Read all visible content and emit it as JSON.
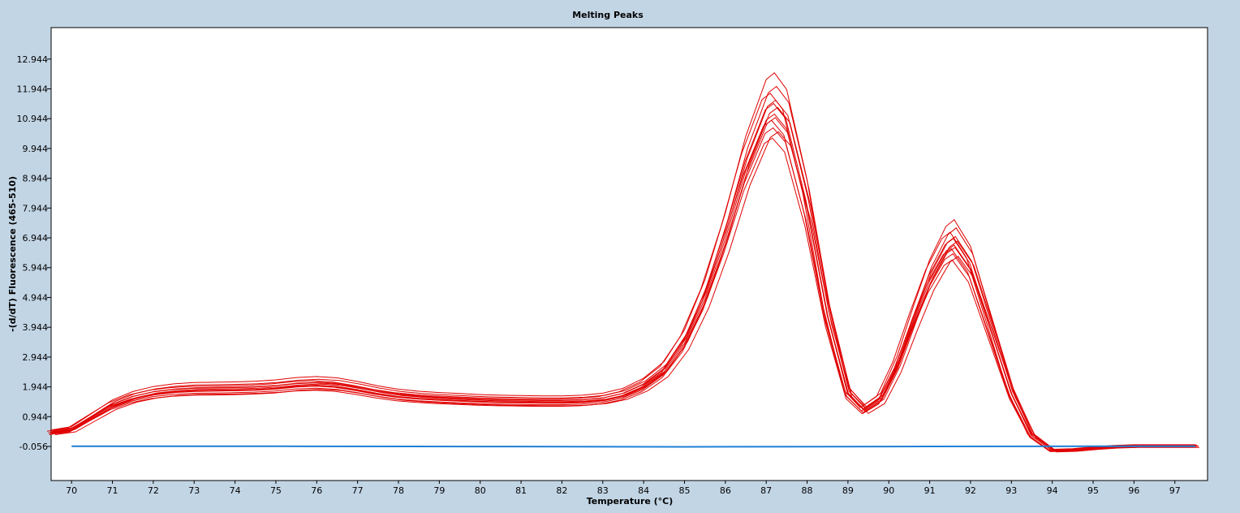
{
  "chart_data": {
    "type": "line",
    "title": "Melting Peaks",
    "xlabel": "Temperature (°C)",
    "ylabel": "-(d/dT) Fluorescence (465-510)",
    "xlim": [
      69.5,
      97.8
    ],
    "ylim": [
      -1.2,
      14.0
    ],
    "x_ticks": [
      70,
      71,
      72,
      73,
      74,
      75,
      76,
      77,
      78,
      79,
      80,
      81,
      82,
      83,
      84,
      85,
      86,
      87,
      88,
      89,
      90,
      91,
      92,
      93,
      94,
      95,
      96,
      97
    ],
    "y_ticks": [
      -0.056,
      0.944,
      1.944,
      2.944,
      3.944,
      4.944,
      5.944,
      6.944,
      7.944,
      8.944,
      9.944,
      10.944,
      11.944,
      12.944
    ],
    "y_tick_labels": [
      "-0.056",
      "0.944",
      "1.944",
      "2.944",
      "3.944",
      "4.944",
      "5.944",
      "6.944",
      "7.944",
      "8.944",
      "9.944",
      "10.944",
      "11.944",
      "12.944"
    ],
    "grid": false,
    "colors": {
      "samples": "#e00000",
      "baseline": "#1f7fd6",
      "page_background": "#c2d5e5",
      "plot_background": "#ffffff"
    },
    "series": [
      {
        "color": "red",
        "x": [
          69.5,
          70,
          70.5,
          71,
          71.5,
          72,
          72.5,
          73,
          73.5,
          74,
          74.5,
          75,
          75.5,
          76,
          76.5,
          77,
          77.5,
          78,
          78.5,
          79,
          79.5,
          80,
          80.5,
          81,
          81.5,
          82,
          82.5,
          83,
          83.5,
          84,
          84.5,
          85,
          85.5,
          86,
          86.5,
          87,
          87.2,
          87.5,
          88,
          88.5,
          89,
          89.4,
          89.8,
          90.2,
          90.6,
          91,
          91.4,
          91.6,
          92,
          92.5,
          93,
          93.5,
          94,
          94.5,
          95,
          95.5,
          96,
          96.5,
          97,
          97.5
        ],
        "y": [
          0.4,
          0.5,
          0.9,
          1.3,
          1.55,
          1.7,
          1.78,
          1.82,
          1.83,
          1.84,
          1.86,
          1.9,
          1.97,
          2.0,
          1.96,
          1.85,
          1.72,
          1.62,
          1.56,
          1.52,
          1.49,
          1.46,
          1.44,
          1.43,
          1.42,
          1.42,
          1.44,
          1.5,
          1.65,
          1.95,
          2.45,
          3.4,
          4.9,
          6.9,
          9.2,
          10.9,
          11.1,
          10.6,
          7.9,
          4.3,
          1.7,
          1.15,
          1.5,
          2.6,
          4.1,
          5.5,
          6.5,
          6.7,
          5.9,
          3.8,
          1.7,
          0.3,
          -0.2,
          -0.18,
          -0.12,
          -0.07,
          -0.05,
          -0.05,
          -0.05,
          -0.05
        ]
      },
      {
        "color": "blue",
        "x": [
          70,
          75,
          80,
          85,
          90,
          95,
          97.5
        ],
        "y": [
          -0.05,
          -0.05,
          -0.06,
          -0.07,
          -0.06,
          -0.05,
          -0.05
        ]
      }
    ]
  }
}
